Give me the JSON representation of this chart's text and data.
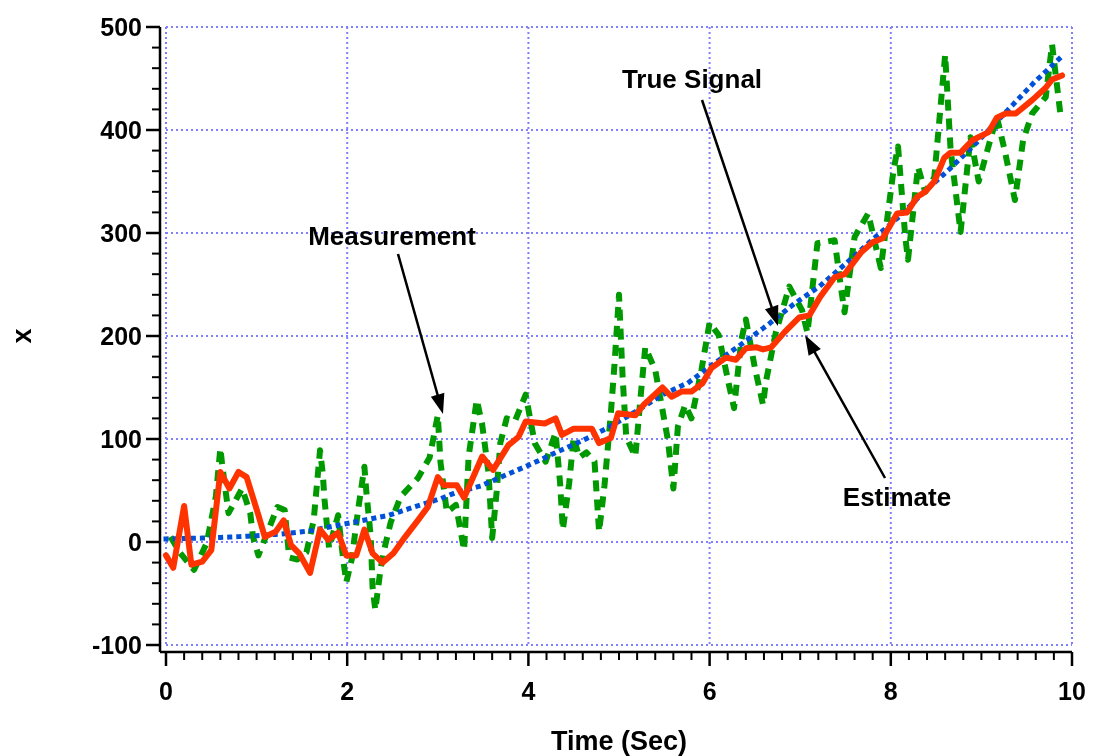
{
  "chart_data": {
    "type": "line",
    "xlabel": "Time (Sec)",
    "ylabel": "x",
    "xlim": [
      0,
      10
    ],
    "ylim": [
      -100,
      500
    ],
    "xticks": [
      0,
      2,
      4,
      6,
      8,
      10
    ],
    "yticks": [
      -100,
      0,
      100,
      200,
      300,
      400,
      500
    ],
    "grid": true,
    "annotations": [
      "Measurement",
      "True Signal",
      "Estimate"
    ],
    "series": [
      {
        "color": "#009900",
        "line_style": "dashed",
        "x": [
          0.05,
          0.15,
          0.31,
          0.45,
          0.55,
          0.6,
          0.62,
          0.69,
          0.84,
          0.93,
          0.96,
          1.02,
          1.1,
          1.23,
          1.31,
          1.36,
          1.45,
          1.55,
          1.63,
          1.7,
          1.73,
          1.75,
          1.8,
          1.9,
          1.96,
          1.99,
          2.05,
          2.12,
          2.19,
          2.21,
          2.26,
          2.28,
          2.31,
          2.37,
          2.42,
          2.48,
          2.59,
          2.78,
          2.91,
          3.0,
          3.03,
          3.1,
          3.2,
          3.29,
          3.34,
          3.43,
          3.49,
          3.56,
          3.6,
          3.65,
          3.69,
          3.76,
          3.85,
          3.97,
          4.07,
          4.19,
          4.3,
          4.35,
          4.38,
          4.45,
          4.5,
          4.56,
          4.64,
          4.73,
          4.78,
          4.84,
          4.91,
          4.95,
          5.0,
          5.04,
          5.08,
          5.18,
          5.25,
          5.29,
          5.4,
          5.54,
          5.6,
          5.65,
          5.73,
          5.8,
          5.91,
          6.0,
          6.1,
          6.21,
          6.27,
          6.35,
          6.4,
          6.5,
          6.59,
          6.62,
          6.73,
          6.88,
          7.02,
          7.08,
          7.19,
          7.38,
          7.45,
          7.49,
          7.6,
          7.75,
          7.89,
          8.03,
          8.08,
          8.16,
          8.19,
          8.3,
          8.38,
          8.48,
          8.6,
          8.66,
          8.77,
          8.88,
          8.97,
          9.17,
          9.26,
          9.37,
          9.46,
          9.56,
          9.71,
          9.78,
          9.87
        ],
        "values": [
          5,
          -10,
          -27,
          -1,
          44,
          91,
          75,
          28,
          52,
          28,
          5,
          -13,
          5,
          34,
          31,
          -15,
          -17,
          -10,
          21,
          89,
          67,
          41,
          -6,
          26,
          -20,
          -39,
          -17,
          31,
          73,
          50,
          5,
          -44,
          -66,
          -25,
          -3,
          19,
          44,
          62,
          82,
          123,
          77,
          29,
          36,
          -8,
          83,
          138,
          114,
          67,
          4,
          49,
          96,
          120,
          117,
          143,
          96,
          78,
          106,
          57,
          12,
          57,
          102,
          82,
          87,
          78,
          10,
          55,
          125,
          172,
          240,
          160,
          102,
          83,
          152,
          189,
          167,
          99,
          52,
          112,
          133,
          120,
          167,
          213,
          201,
          154,
          130,
          196,
          216,
          169,
          133,
          155,
          203,
          248,
          225,
          203,
          290,
          293,
          247,
          223,
          296,
          319,
          266,
          361,
          384,
          296,
          274,
          364,
          340,
          354,
          473,
          381,
          301,
          393,
          350,
          413,
          379,
          332,
          390,
          416,
          432,
          483,
          417
        ]
      },
      {
        "color": "#0050d8",
        "line_style": "dotted",
        "x": [
          0,
          0.5,
          1.0,
          1.3,
          1.6,
          2.0,
          2.46,
          2.74,
          3.03,
          3.17,
          3.46,
          3.75,
          4.04,
          4.33,
          4.61,
          4.9,
          5.19,
          5.48,
          5.77,
          6.06,
          6.35,
          6.63,
          6.93,
          7.21,
          7.5,
          7.79,
          8.08,
          8.37,
          8.66,
          8.95,
          9.32,
          9.58,
          9.87
        ],
        "values": [
          3,
          4,
          6,
          8,
          11,
          18,
          26,
          34,
          42,
          47,
          54,
          65,
          76,
          88,
          99,
          112,
          127,
          143,
          155,
          174,
          192,
          210,
          231,
          248,
          270,
          293,
          315,
          340,
          363,
          388,
          422,
          446,
          470
        ]
      },
      {
        "color": "#ff3300",
        "line_style": "solid",
        "x": [
          0,
          0.08,
          0.2,
          0.28,
          0.4,
          0.5,
          0.6,
          0.7,
          0.8,
          0.89,
          1.02,
          1.09,
          1.21,
          1.3,
          1.38,
          1.47,
          1.59,
          1.7,
          1.79,
          1.9,
          1.99,
          2.1,
          2.19,
          2.28,
          2.39,
          2.51,
          2.64,
          2.78,
          2.89,
          3.0,
          3.07,
          3.21,
          3.29,
          3.49,
          3.61,
          3.78,
          3.89,
          3.97,
          4.18,
          4.3,
          4.37,
          4.5,
          4.7,
          4.78,
          4.91,
          4.99,
          5.18,
          5.27,
          5.48,
          5.58,
          5.69,
          5.8,
          5.92,
          6.02,
          6.18,
          6.29,
          6.4,
          6.52,
          6.59,
          6.68,
          6.83,
          6.99,
          7.1,
          7.22,
          7.38,
          7.49,
          7.67,
          7.8,
          7.91,
          8.07,
          8.18,
          8.29,
          8.38,
          8.48,
          8.59,
          8.66,
          8.77,
          8.9,
          9.08,
          9.17,
          9.27,
          9.38,
          9.56,
          9.71,
          9.78,
          9.89
        ],
        "values": [
          -13,
          -25,
          35,
          -22,
          -19,
          -8,
          68,
          52,
          68,
          63,
          26,
          5,
          10,
          21,
          -3,
          -11,
          -30,
          12,
          2,
          9,
          -13,
          -13,
          12,
          -11,
          -20,
          -11,
          5,
          21,
          34,
          63,
          55,
          55,
          43,
          83,
          70,
          94,
          102,
          117,
          115,
          120,
          104,
          110,
          110,
          96,
          101,
          125,
          123,
          133,
          150,
          141,
          146,
          146,
          154,
          169,
          179,
          177,
          188,
          189,
          187,
          189,
          204,
          218,
          220,
          238,
          257,
          260,
          281,
          291,
          295,
          319,
          320,
          335,
          340,
          350,
          373,
          378,
          378,
          390,
          398,
          412,
          416,
          416,
          429,
          441,
          449,
          453
        ]
      }
    ]
  }
}
